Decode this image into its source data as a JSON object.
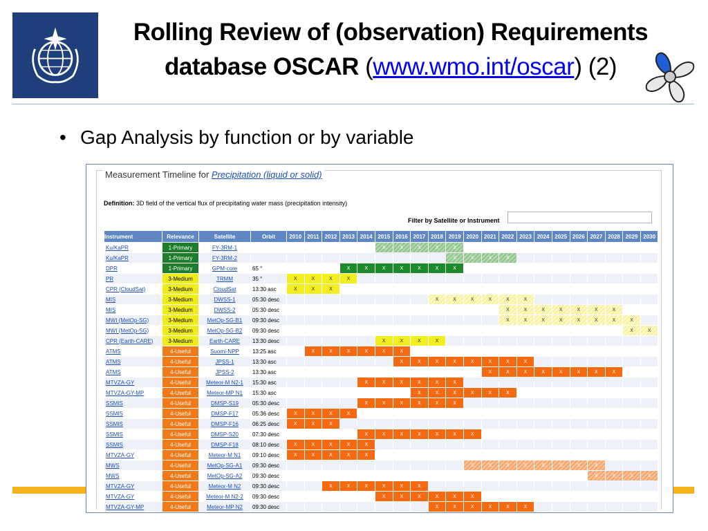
{
  "slide": {
    "title_line1": "Rolling Review of (observation) Requirements",
    "title_line2": "database OSCAR",
    "title_paren_open": "(",
    "title_link": "www.wmo.int/oscar",
    "title_paren_close": ") (2)",
    "bullet": "Gap Analysis  by function or by variable",
    "colors": {
      "logo_bg": "#1f3f7a",
      "accent_bar": "#f4b21b",
      "header_blue": "#5f87c4"
    }
  },
  "panel": {
    "title_prefix": "Measurement Timeline for ",
    "title_link": "Precipitation (liquid or solid)",
    "definition_label": "Definition:",
    "definition_text": " 3D field of the vertical flux of precipitating water mass (precipitation intensity)",
    "filter_label": "Filter by Satellite or Instrument",
    "filter_value": ""
  },
  "table": {
    "headers": [
      "Instrument",
      "Relevance",
      "Satellite",
      "Orbit"
    ],
    "years": [
      "2010",
      "2011",
      "2012",
      "2013",
      "2014",
      "2015",
      "2016",
      "2017",
      "2018",
      "2019",
      "2020",
      "2021",
      "2022",
      "2023",
      "2024",
      "2025",
      "2026",
      "2027",
      "2028",
      "2029",
      "2030"
    ],
    "mark": "X",
    "rows": [
      {
        "instrument": "Ku/KaPR",
        "relevance": "1-Primary",
        "rel": 1,
        "satellite": "FY-3RM-1",
        "orbit": "",
        "start": 2015,
        "end": 2019,
        "style": "gl"
      },
      {
        "instrument": "Ku/KaPR",
        "relevance": "1-Primary",
        "rel": 1,
        "satellite": "FY-3RM-2",
        "orbit": "",
        "start": 2019,
        "end": 2022,
        "style": "gl"
      },
      {
        "instrument": "DPR",
        "relevance": "1-Primary",
        "rel": 1,
        "satellite": "GPM-core",
        "orbit": "65 °",
        "start": 2013,
        "end": 2019,
        "style": "g"
      },
      {
        "instrument": "PR",
        "relevance": "3-Medium",
        "rel": 3,
        "satellite": "TRMM",
        "orbit": "35 °",
        "start": 2010,
        "end": 2013,
        "style": "y"
      },
      {
        "instrument": "CPR (CloudSat)",
        "relevance": "3-Medium",
        "rel": 3,
        "satellite": "CloudSat",
        "orbit": "13:30 asc",
        "start": 2010,
        "end": 2012,
        "style": "y"
      },
      {
        "instrument": "MIS",
        "relevance": "3-Medium",
        "rel": 3,
        "satellite": "DWSS-1",
        "orbit": "05:30 desc",
        "start": 2018,
        "end": 2023,
        "style": "yl"
      },
      {
        "instrument": "MIS",
        "relevance": "3-Medium",
        "rel": 3,
        "satellite": "DWSS-2",
        "orbit": "05:30 desc",
        "start": 2022,
        "end": 2028,
        "style": "yl"
      },
      {
        "instrument": "MWI (MetOp-SG)",
        "relevance": "3-Medium",
        "rel": 3,
        "satellite": "MetOp-SG-B1",
        "orbit": "09:30 desc",
        "start": 2022,
        "end": 2029,
        "style": "yl"
      },
      {
        "instrument": "MWI (MetOp-SG)",
        "relevance": "3-Medium",
        "rel": 3,
        "satellite": "MetOp-SG-B2",
        "orbit": "09:30 desc",
        "start": 2029,
        "end": 2030,
        "style": "yl"
      },
      {
        "instrument": "CPR (Earth-CARE)",
        "relevance": "3-Medium",
        "rel": 3,
        "satellite": "Earth-CARE",
        "orbit": "13:30 desc",
        "start": 2015,
        "end": 2018,
        "style": "y"
      },
      {
        "instrument": "ATMS",
        "relevance": "4-Useful",
        "rel": 4,
        "satellite": "Suomi-NPP",
        "orbit": "13:25 asc",
        "start": 2011,
        "end": 2016,
        "style": "o"
      },
      {
        "instrument": "ATMS",
        "relevance": "4-Useful",
        "rel": 4,
        "satellite": "JPSS-1",
        "orbit": "13:30 asc",
        "start": 2016,
        "end": 2023,
        "style": "o"
      },
      {
        "instrument": "ATMS",
        "relevance": "4-Useful",
        "rel": 4,
        "satellite": "JPSS-2",
        "orbit": "13:30 asc",
        "start": 2021,
        "end": 2028,
        "style": "o"
      },
      {
        "instrument": "MTVZA-GY",
        "relevance": "4-Useful",
        "rel": 4,
        "satellite": "Meteor-M N2-1",
        "orbit": "15:30 asc",
        "start": 2014,
        "end": 2019,
        "style": "o"
      },
      {
        "instrument": "MTVZA-GY-MP",
        "relevance": "4-Useful",
        "rel": 4,
        "satellite": "Meteor-MP N1",
        "orbit": "15:30 asc",
        "start": 2017,
        "end": 2022,
        "style": "o"
      },
      {
        "instrument": "SSMIS",
        "relevance": "4-Useful",
        "rel": 4,
        "satellite": "DMSP-S19",
        "orbit": "05:30 desc",
        "start": 2014,
        "end": 2019,
        "style": "o"
      },
      {
        "instrument": "SSMIS",
        "relevance": "4-Useful",
        "rel": 4,
        "satellite": "DMSP-F17",
        "orbit": "05:36 desc",
        "start": 2010,
        "end": 2013,
        "style": "o"
      },
      {
        "instrument": "SSMIS",
        "relevance": "4-Useful",
        "rel": 4,
        "satellite": "DMSP-F16",
        "orbit": "06:25 desc",
        "start": 2010,
        "end": 2012,
        "style": "o"
      },
      {
        "instrument": "SSMIS",
        "relevance": "4-Useful",
        "rel": 4,
        "satellite": "DMSP-S20",
        "orbit": "07:30 desc",
        "start": 2014,
        "end": 2020,
        "style": "o"
      },
      {
        "instrument": "SSMIS",
        "relevance": "4-Useful",
        "rel": 4,
        "satellite": "DMSP-F18",
        "orbit": "08:10 desc",
        "start": 2010,
        "end": 2014,
        "style": "o"
      },
      {
        "instrument": "MTVZA-GY",
        "relevance": "4-Useful",
        "rel": 4,
        "satellite": "Meteor-M N1",
        "orbit": "09:10 desc",
        "start": 2010,
        "end": 2014,
        "style": "o"
      },
      {
        "instrument": "MWS",
        "relevance": "4-Useful",
        "rel": 4,
        "satellite": "MetOp-SG-A1",
        "orbit": "09:30 desc",
        "start": 2020,
        "end": 2027,
        "style": "ol"
      },
      {
        "instrument": "MWS",
        "relevance": "4-Useful",
        "rel": 4,
        "satellite": "MetOp-SG-A2",
        "orbit": "09:30 desc",
        "start": 2027,
        "end": 2030,
        "style": "ol"
      },
      {
        "instrument": "MTVZA-GY",
        "relevance": "4-Useful",
        "rel": 4,
        "satellite": "Meteor-M N2",
        "orbit": "09:30 desc",
        "start": 2012,
        "end": 2017,
        "style": "o"
      },
      {
        "instrument": "MTVZA-GY",
        "relevance": "4-Useful",
        "rel": 4,
        "satellite": "Meteor-M N2-2",
        "orbit": "09:30 desc",
        "start": 2015,
        "end": 2020,
        "style": "o"
      },
      {
        "instrument": "MTVZA-GY-MP",
        "relevance": "4-Useful",
        "rel": 4,
        "satellite": "Meteor-MP N2",
        "orbit": "09:30 desc",
        "start": 2018,
        "end": 2023,
        "style": "o"
      }
    ]
  }
}
